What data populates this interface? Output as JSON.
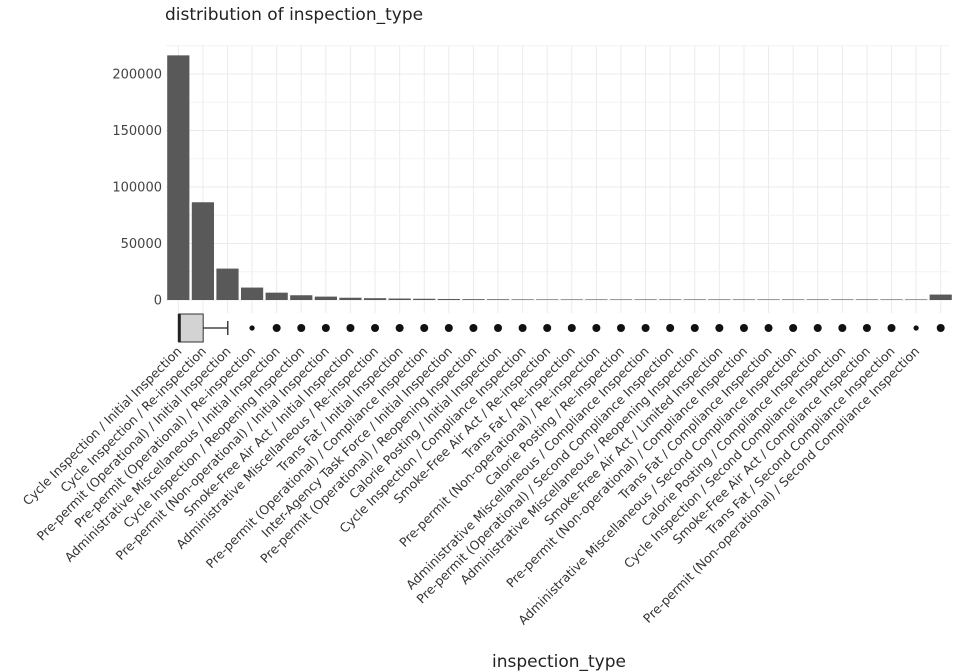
{
  "chart_data": {
    "type": "bar",
    "title": "distribution of inspection_type",
    "xlabel": "inspection_type",
    "ylabel": "",
    "ylim": [
      -12000,
      230000
    ],
    "yticks": [
      0,
      50000,
      100000,
      150000,
      200000
    ],
    "ytick_labels": [
      "0",
      "50000",
      "100000",
      "150000",
      "200000"
    ],
    "grid": true,
    "categories": [
      "Cycle Inspection / Initial Inspection",
      "Cycle Inspection / Re-inspection",
      "Pre-permit (Operational) / Initial Inspection",
      "Pre-permit (Operational) / Re-inspection",
      "Administrative Miscellaneous / Initial Inspection",
      "Cycle Inspection / Reopening Inspection",
      "Pre-permit (Non-operational) / Initial Inspection",
      "Smoke-Free Air Act / Initial Inspection",
      "Administrative Miscellaneous / Re-inspection",
      "Trans Fat / Initial Inspection",
      "Pre-permit (Operational) / Compliance Inspection",
      "Inter-Agency Task Force / Initial Inspection",
      "Pre-permit (Operational) / Reopening Inspection",
      "Calorie Posting / Initial Inspection",
      "Cycle Inspection / Compliance Inspection",
      "Smoke-Free Air Act / Re-inspection",
      "Trans Fat / Re-inspection",
      "Pre-permit (Non-operational) / Re-inspection",
      "Calorie Posting / Re-inspection",
      "Administrative Miscellaneous / Compliance Inspection",
      "Pre-permit (Operational) / Second Compliance Inspection",
      "Administrative Miscellaneous / Reopening Inspection",
      "Smoke-Free Air Act / Limited Inspection",
      "Pre-permit (Non-operational) / Compliance Inspection",
      "Trans Fat / Compliance Inspection",
      "Administrative Miscellaneous / Second Compliance Inspection",
      "Calorie Posting / Compliance Inspection",
      "Cycle Inspection / Second Compliance Inspection",
      "Smoke-Free Air Act / Compliance Inspection",
      "Trans Fat / Second Compliance Inspection",
      "Pre-permit (Non-operational) / Second Compliance Inspection",
      ""
    ],
    "values": [
      216500,
      86500,
      27800,
      11000,
      6500,
      4200,
      3000,
      2000,
      1600,
      1300,
      1100,
      900,
      750,
      650,
      550,
      450,
      380,
      320,
      270,
      230,
      190,
      160,
      130,
      110,
      90,
      70,
      55,
      45,
      35,
      25,
      15,
      4800
    ],
    "boxplot": {
      "whisker_low_index": 0,
      "q1_index": 0.5,
      "median_index": 1.5,
      "q3_index": 1.5,
      "whisker_high_index": 2.5,
      "outlier_indices": [
        3,
        4,
        5,
        6,
        7,
        8,
        9,
        10,
        11,
        12,
        13,
        14,
        15,
        16,
        17,
        18,
        19,
        20,
        21,
        22,
        23,
        24,
        25,
        26,
        27,
        28,
        29,
        30,
        31
      ]
    },
    "colors": {
      "bar": "#595959",
      "grid": "#ebebeb",
      "box_fill": "#d3d3d3",
      "box_line": "#333333"
    }
  }
}
